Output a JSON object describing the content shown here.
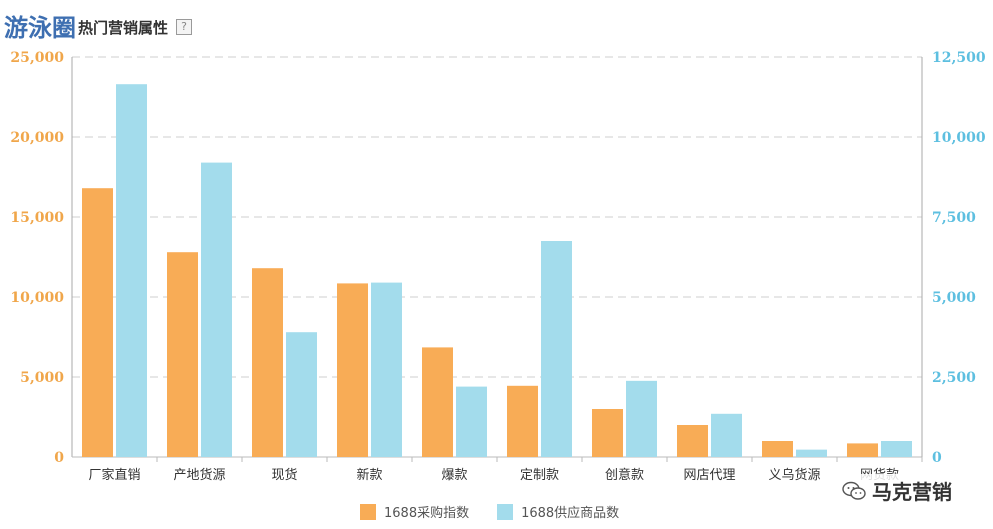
{
  "title": {
    "main": "游泳圈",
    "sub": "热门营销属性",
    "help": "?"
  },
  "colors": {
    "series1": "#f8ac56",
    "series2": "#a3dcec",
    "left_axis": "#f0a64a",
    "right_axis": "#5dbfe0",
    "grid": "#cfcfcf"
  },
  "watermark": {
    "text": "马克营销",
    "icon": "wechat-icon"
  },
  "chart_data": {
    "type": "bar",
    "title": "",
    "xlabel": "",
    "ylabel": "",
    "categories": [
      "厂家直销",
      "产地货源",
      "现货",
      "新款",
      "爆款",
      "定制款",
      "创意款",
      "网店代理",
      "义乌货源",
      "网货款"
    ],
    "category_labels_display": [
      "厂家直销",
      "产地货源",
      "现货",
      "新款",
      "爆款",
      "定制款",
      "创意款",
      "网店代理",
      "义乌货源",
      "网货款"
    ],
    "series": [
      {
        "name": "1688采购指数",
        "axis": "left",
        "values": [
          16800,
          12800,
          11800,
          10850,
          6850,
          4450,
          3000,
          2000,
          1000,
          850
        ]
      },
      {
        "name": "1688供应商品数",
        "axis": "right",
        "values": [
          11650,
          9200,
          3900,
          5450,
          2200,
          6750,
          2380,
          1350,
          230,
          500
        ]
      }
    ],
    "ylim": [
      0,
      25000
    ],
    "y2lim": [
      0,
      12500
    ],
    "y_ticks": [
      "0",
      "5,000",
      "10,000",
      "15,000",
      "20,000",
      "25,000"
    ],
    "y2_ticks": [
      "0",
      "2,500",
      "5,000",
      "7,500",
      "10,000",
      "12,500"
    ],
    "grid": true,
    "legend_position": "bottom"
  }
}
